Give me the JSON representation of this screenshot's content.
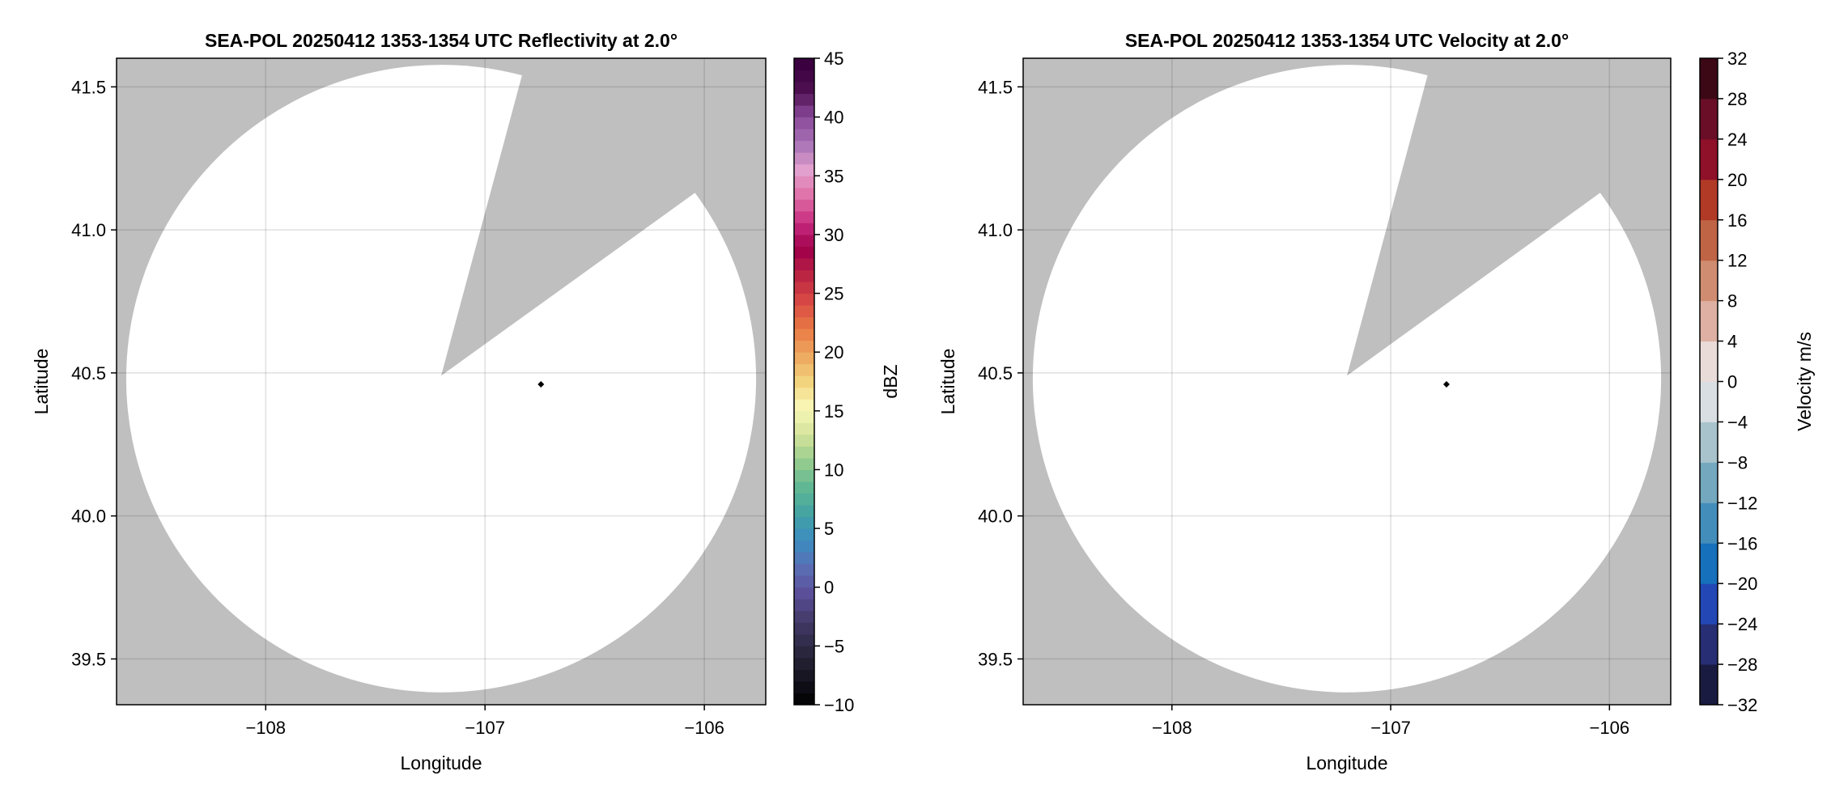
{
  "chart_data": [
    {
      "type": "heatmap",
      "title": "SEA-POL 20250412 1353-1354 UTC Reflectivity at 2.0°",
      "xlabel": "Longitude",
      "ylabel": "Latitude",
      "xlim": [
        -108.68,
        -105.72
      ],
      "ylim": [
        39.34,
        41.6
      ],
      "xticks": [
        -108,
        -107,
        -106
      ],
      "xtick_labels": [
        "−108",
        "−107",
        "−106"
      ],
      "yticks": [
        39.5,
        40.0,
        40.5,
        41.0,
        41.5
      ],
      "ytick_labels": [
        "39.5",
        "40.0",
        "40.5",
        "41.0",
        "41.5"
      ],
      "grid": true,
      "background_color": "#bfbfbf",
      "coverage_color": "#ffffff",
      "coverage_center": [
        -107.2,
        40.48
      ],
      "coverage_radius_deg": [
        1.436,
        1.097
      ],
      "blocked_sector": [
        [
          -107.2,
          40.49
        ],
        [
          -106.835,
          41.53
        ],
        [
          -106.06,
          41.12
        ]
      ],
      "radar_marker": [
        -106.745,
        40.46
      ],
      "colorbar": {
        "label": "dBZ",
        "range": [
          -10,
          45
        ],
        "step": 1,
        "ticks": [
          -10,
          -5,
          0,
          5,
          10,
          15,
          20,
          25,
          30,
          35,
          40,
          45
        ],
        "tick_labels": [
          "−10",
          "−5",
          "0",
          "5",
          "10",
          "15",
          "20",
          "25",
          "30",
          "35",
          "40",
          "45"
        ],
        "colors": [
          "#050507",
          "#1a1826",
          "#2e2a45",
          "#453b6a",
          "#5b4f9a",
          "#5a6fb5",
          "#3b8cc0",
          "#43a3a3",
          "#60b793",
          "#97cc8e",
          "#d3e39a",
          "#faf8b8",
          "#f3d47e",
          "#eda75e",
          "#e97a45",
          "#d84a45",
          "#bb2542",
          "#a0004a",
          "#c62a7f",
          "#e070a8",
          "#e2a0ce",
          "#a873b6",
          "#8a4a9a",
          "#4e1050",
          "#3b0040"
        ]
      }
    },
    {
      "type": "heatmap",
      "title": "SEA-POL 20250412 1353-1354 UTC Velocity at 2.0°",
      "xlabel": "Longitude",
      "ylabel": "Latitude",
      "xlim": [
        -108.68,
        -105.72
      ],
      "ylim": [
        39.34,
        41.6
      ],
      "xticks": [
        -108,
        -107,
        -106
      ],
      "xtick_labels": [
        "−108",
        "−107",
        "−106"
      ],
      "yticks": [
        39.5,
        40.0,
        40.5,
        41.0,
        41.5
      ],
      "ytick_labels": [
        "39.5",
        "40.0",
        "40.5",
        "41.0",
        "41.5"
      ],
      "grid": true,
      "background_color": "#bfbfbf",
      "coverage_color": "#ffffff",
      "coverage_center": [
        -107.2,
        40.48
      ],
      "coverage_radius_deg": [
        1.436,
        1.097
      ],
      "blocked_sector": [
        [
          -107.2,
          40.49
        ],
        [
          -106.835,
          41.53
        ],
        [
          -106.06,
          41.12
        ]
      ],
      "radar_marker": [
        -106.745,
        40.46
      ],
      "colorbar": {
        "label": "Velocity m/s",
        "range": [
          -32,
          32
        ],
        "step": 4,
        "ticks": [
          -32,
          -28,
          -24,
          -20,
          -16,
          -12,
          -8,
          -4,
          0,
          4,
          8,
          12,
          16,
          20,
          24,
          28,
          32
        ],
        "tick_labels": [
          "−32",
          "−28",
          "−24",
          "−20",
          "−16",
          "−12",
          "−8",
          "−4",
          "0",
          "4",
          "8",
          "12",
          "16",
          "20",
          "24",
          "28",
          "32"
        ],
        "colors": [
          "#1a1b40",
          "#272e73",
          "#2348b5",
          "#1670bb",
          "#438dbb",
          "#73a8bf",
          "#a8c3cc",
          "#d8dee2",
          "#e9dbd8",
          "#ddb0a3",
          "#d08c70",
          "#c06446",
          "#b13a27",
          "#8e1029",
          "#6a0e27",
          "#3c0816"
        ]
      }
    }
  ]
}
